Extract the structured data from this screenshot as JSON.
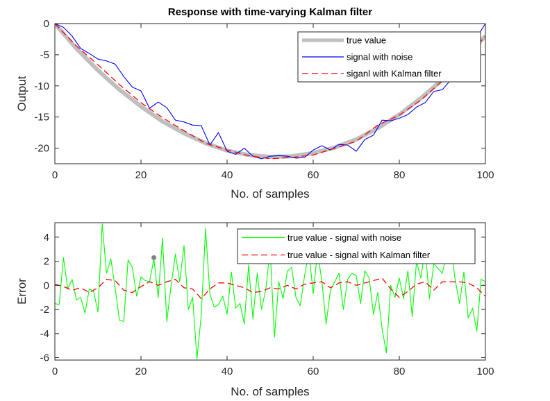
{
  "chart_data": [
    {
      "type": "line",
      "title": "Response with time-varying Kalman filter",
      "xlabel": "No. of samples",
      "ylabel": "Output",
      "xlim": [
        0,
        100
      ],
      "ylim": [
        -22.5,
        0
      ],
      "xticks": [
        "0",
        "20",
        "40",
        "60",
        "80",
        "100"
      ],
      "yticks": [
        "0",
        "-5",
        "-10",
        "-15",
        "-20"
      ],
      "xtick_values": [
        0,
        20,
        40,
        60,
        80,
        100
      ],
      "ytick_values": [
        0,
        -5,
        -10,
        -15,
        -20
      ],
      "legend_position": "top-right",
      "grid": false,
      "series": [
        {
          "name": "true value",
          "color": "#bfbfbf",
          "style": "solid-thick",
          "x": [
            0,
            5,
            10,
            15,
            20,
            25,
            30,
            35,
            40,
            45,
            50,
            55,
            60,
            65,
            70,
            75,
            80,
            85,
            90,
            95,
            100
          ],
          "y": [
            0,
            -4,
            -7.5,
            -10.6,
            -13.3,
            -15.7,
            -17.6,
            -19.2,
            -20.4,
            -21.1,
            -21.4,
            -21.3,
            -20.8,
            -19.9,
            -18.6,
            -16.8,
            -14.6,
            -12.0,
            -9.0,
            -5.6,
            -2.0
          ]
        },
        {
          "name": "signal with noise",
          "color": "#0000ff",
          "style": "solid",
          "x": [
            0,
            2,
            4,
            6,
            8,
            10,
            12,
            14,
            16,
            18,
            20,
            22,
            24,
            26,
            28,
            30,
            32,
            34,
            36,
            38,
            40,
            42,
            44,
            46,
            48,
            50,
            52,
            54,
            56,
            58,
            60,
            62,
            64,
            66,
            68,
            70,
            72,
            74,
            76,
            78,
            80,
            82,
            84,
            86,
            88,
            90,
            92,
            94,
            96,
            98,
            100
          ],
          "y": [
            0,
            -0.6,
            -2.0,
            -4.0,
            -4.8,
            -5.7,
            -6.0,
            -6.5,
            -8.5,
            -10.2,
            -10.8,
            -13.6,
            -12.6,
            -13.5,
            -15.5,
            -15.8,
            -16.3,
            -16.4,
            -19.5,
            -17.5,
            -20.5,
            -21.0,
            -20.0,
            -21.3,
            -21.7,
            -21.3,
            -21.2,
            -21.3,
            -21.6,
            -21.5,
            -20.3,
            -19.6,
            -20.3,
            -19.4,
            -19.5,
            -20.5,
            -18.6,
            -17.9,
            -15.5,
            -15.6,
            -15.2,
            -14.6,
            -13.4,
            -12.7,
            -10.9,
            -10.6,
            -9.0,
            -7.8,
            -5.2,
            -2.2,
            0
          ]
        },
        {
          "name": "siganl with Kalman filter",
          "color": "#ff0000",
          "style": "dashed",
          "x": [
            0,
            5,
            10,
            15,
            20,
            25,
            30,
            35,
            40,
            45,
            50,
            55,
            60,
            65,
            70,
            75,
            80,
            85,
            90,
            95,
            100
          ],
          "y": [
            0,
            -3.6,
            -6.6,
            -9.8,
            -12.7,
            -15.1,
            -17.2,
            -19.2,
            -20.3,
            -21.2,
            -21.7,
            -21.5,
            -21.1,
            -20.0,
            -18.9,
            -16.3,
            -14.7,
            -12.3,
            -9.2,
            -5.9,
            -2.0
          ]
        }
      ]
    },
    {
      "type": "line",
      "title": "",
      "xlabel": "No. of samples",
      "ylabel": "Error",
      "xlim": [
        0,
        100
      ],
      "ylim": [
        -6.2,
        5.2
      ],
      "xticks": [
        "0",
        "20",
        "40",
        "60",
        "80",
        "100"
      ],
      "yticks": [
        "4",
        "2",
        "0",
        "-2",
        "-4",
        "-6"
      ],
      "xtick_values": [
        0,
        20,
        40,
        60,
        80,
        100
      ],
      "ytick_values": [
        4,
        2,
        0,
        -2,
        -4,
        -6
      ],
      "legend_position": "top-right",
      "grid": false,
      "marker": {
        "x": 23,
        "y": 2.3,
        "color": "#808080"
      },
      "series": [
        {
          "name": "true value - signal with noise",
          "color": "#00ff00",
          "style": "solid",
          "x": [
            0,
            1,
            2,
            3,
            4,
            5,
            6,
            7,
            8,
            9,
            10,
            11,
            12,
            13,
            14,
            15,
            16,
            17,
            18,
            19,
            20,
            21,
            22,
            23,
            24,
            25,
            26,
            27,
            28,
            29,
            30,
            31,
            32,
            33,
            34,
            35,
            36,
            37,
            38,
            39,
            40,
            41,
            42,
            43,
            44,
            45,
            46,
            47,
            48,
            49,
            50,
            51,
            52,
            53,
            54,
            55,
            56,
            57,
            58,
            59,
            60,
            61,
            62,
            63,
            64,
            65,
            66,
            67,
            68,
            69,
            70,
            71,
            72,
            73,
            74,
            75,
            76,
            77,
            78,
            79,
            80,
            81,
            82,
            83,
            84,
            85,
            86,
            87,
            88,
            89,
            90,
            91,
            92,
            93,
            94,
            95,
            96,
            97,
            98,
            99,
            100
          ],
          "y": [
            -1.5,
            -1.6,
            2.3,
            -0.3,
            0.5,
            -1.2,
            -1.0,
            -2.3,
            -0.3,
            -0.5,
            -2.2,
            5.1,
            1.0,
            2.2,
            -0.2,
            -2.9,
            -3.0,
            2.1,
            1.5,
            -0.9,
            0.7,
            0.4,
            0.3,
            2.2,
            -1.0,
            3.9,
            -3.0,
            0.0,
            2.6,
            0.3,
            3.3,
            -2.0,
            -1.0,
            -6.1,
            -2.5,
            4.7,
            -0.7,
            -1.8,
            -1.6,
            -0.9,
            -2.4,
            1.1,
            -1.9,
            -1.5,
            -3.2,
            1.7,
            -2.8,
            1.0,
            -2.0,
            -0.3,
            3.0,
            -4.3,
            0.3,
            -1.1,
            1.2,
            1.5,
            -1.0,
            -1.7,
            0.8,
            2.8,
            -0.7,
            2.8,
            0.4,
            -3.2,
            -0.4,
            0.3,
            1.0,
            -2.0,
            0.5,
            1.0,
            0.8,
            -1.5,
            1.2,
            0.6,
            -2.4,
            -0.6,
            -3.6,
            -5.6,
            0.0,
            -1.0,
            0.6,
            -1.1,
            1.2,
            -2.6,
            2.0,
            0.6,
            3.0,
            -1.1,
            1.8,
            1.4,
            1.0,
            2.6,
            3.1,
            0.4,
            -1.5,
            1.1,
            -2.7,
            -1.9,
            -3.8,
            0.5,
            0.3
          ]
        },
        {
          "name": "true value - signal with Kalman filter",
          "color": "#ff0000",
          "style": "dashed",
          "x": [
            0,
            2,
            4,
            6,
            8,
            10,
            12,
            14,
            16,
            18,
            20,
            22,
            24,
            26,
            28,
            30,
            32,
            34,
            36,
            38,
            40,
            42,
            44,
            46,
            48,
            50,
            52,
            54,
            56,
            58,
            60,
            62,
            64,
            66,
            68,
            70,
            72,
            74,
            76,
            78,
            80,
            82,
            84,
            86,
            88,
            90,
            92,
            94,
            96,
            98,
            100
          ],
          "y": [
            0.1,
            -0.1,
            -0.4,
            -0.2,
            -0.6,
            -0.2,
            0.5,
            0.4,
            -0.4,
            -0.6,
            -0.1,
            0.3,
            0.0,
            0.3,
            0.5,
            -0.2,
            -0.3,
            -1.1,
            -0.3,
            0.2,
            0.2,
            0.0,
            -0.2,
            -0.6,
            -0.5,
            -0.2,
            -0.3,
            0.0,
            -0.3,
            0.1,
            0.2,
            0.3,
            -0.2,
            0.2,
            0.3,
            0.0,
            0.2,
            0.4,
            0.6,
            -0.3,
            -1.0,
            -0.5,
            0.1,
            0.3,
            -0.4,
            0.3,
            0.3,
            0.3,
            0.2,
            -0.2,
            -0.9
          ]
        }
      ]
    }
  ]
}
